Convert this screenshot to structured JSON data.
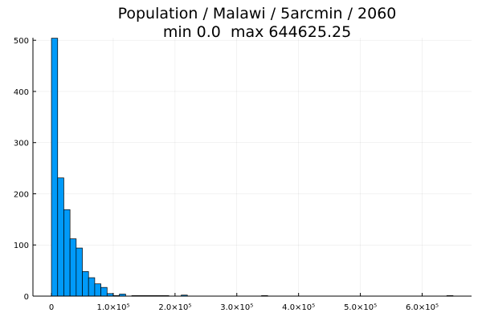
{
  "chart_data": {
    "type": "bar",
    "title": "Population / Malawi / 5arcmin / 2060",
    "subtitle": "min 0.0  max 644625.25",
    "xlabel": "",
    "ylabel": "",
    "bin_width": 10000,
    "bin_start": 0,
    "values": [
      504,
      231,
      169,
      112,
      94,
      48,
      36,
      24,
      17,
      5,
      1,
      4,
      0,
      1,
      1,
      1,
      1,
      1,
      1,
      0,
      0,
      2,
      0,
      0,
      0,
      0,
      0,
      0,
      0,
      0,
      0,
      0,
      0,
      0,
      1,
      0,
      0,
      0,
      0,
      0,
      0,
      0,
      0,
      0,
      0,
      0,
      0,
      0,
      0,
      0,
      0,
      0,
      0,
      0,
      0,
      0,
      0,
      0,
      0,
      0,
      0,
      0,
      0,
      0,
      1
    ],
    "xlim": [
      -30000,
      680000
    ],
    "ylim": [
      0,
      505
    ],
    "x_ticks": [
      {
        "value": 0,
        "label": "0"
      },
      {
        "value": 100000,
        "label": "1.0×10⁵"
      },
      {
        "value": 200000,
        "label": "2.0×10⁵"
      },
      {
        "value": 300000,
        "label": "3.0×10⁵"
      },
      {
        "value": 400000,
        "label": "4.0×10⁵"
      },
      {
        "value": 500000,
        "label": "5.0×10⁵"
      },
      {
        "value": 600000,
        "label": "6.0×10⁵"
      }
    ],
    "y_ticks": [
      {
        "value": 0,
        "label": "0"
      },
      {
        "value": 100,
        "label": "100"
      },
      {
        "value": 200,
        "label": "200"
      },
      {
        "value": 300,
        "label": "300"
      },
      {
        "value": 400,
        "label": "400"
      },
      {
        "value": 500,
        "label": "500"
      }
    ],
    "grid": true,
    "legend": "none",
    "bar_color": "#009af9",
    "bar_edge_color": "#000000"
  }
}
